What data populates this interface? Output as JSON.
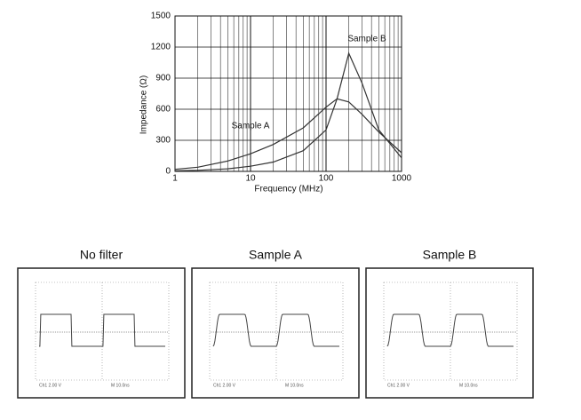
{
  "chart_data": {
    "type": "line",
    "xlabel": "Frequency (MHz)",
    "ylabel": "Impedance (Ω)",
    "xscale": "log",
    "xlim": [
      1,
      1000
    ],
    "xticks": [
      1,
      10,
      100,
      1000
    ],
    "xminorticks": [
      2,
      3,
      4,
      5,
      6,
      7,
      8,
      9,
      20,
      30,
      40,
      50,
      60,
      70,
      80,
      90,
      200,
      300,
      400,
      500,
      600,
      700,
      800,
      900
    ],
    "ylim": [
      0,
      1500
    ],
    "yticks": [
      0,
      300,
      600,
      900,
      1200,
      1500
    ],
    "grid": true,
    "x": [
      1,
      2,
      5,
      10,
      20,
      50,
      100,
      140,
      200,
      300,
      500,
      1000
    ],
    "series": [
      {
        "name": "Sample A",
        "color": "#333333",
        "values": [
          20,
          40,
          100,
          170,
          260,
          420,
          620,
          700,
          670,
          550,
          380,
          180
        ]
      },
      {
        "name": "Sample B",
        "color": "#333333",
        "values": [
          5,
          10,
          25,
          50,
          90,
          200,
          400,
          700,
          1140,
          850,
          400,
          130
        ]
      }
    ]
  },
  "panels": [
    {
      "title": "No filter",
      "channel": "Ch1   2.00 V",
      "timebase": "M 10.0ns"
    },
    {
      "title": "Sample A",
      "channel": "Ch1   2.00 V",
      "timebase": "M 10.0ns"
    },
    {
      "title": "Sample B",
      "channel": "Ch1   2.00 V",
      "timebase": "M 10.0ns"
    }
  ]
}
